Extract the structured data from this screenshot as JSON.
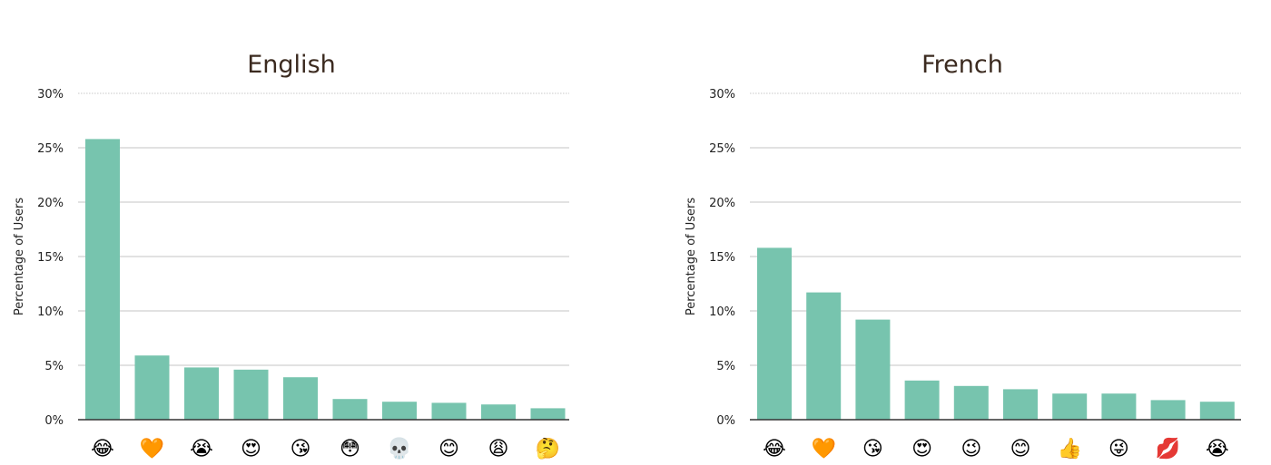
{
  "chart_data": [
    {
      "type": "bar",
      "title": "English",
      "ylabel": "Percentage of Users",
      "ylim": [
        0,
        30
      ],
      "yticks": [
        "0%",
        "5%",
        "10%",
        "15%",
        "20%",
        "25%",
        "30%"
      ],
      "categories": [
        "😂",
        "🧡",
        "😭",
        "😍",
        "😘",
        "😳",
        "💀",
        "😊",
        "😩",
        "🤔"
      ],
      "values": [
        25.8,
        5.9,
        4.8,
        4.6,
        3.9,
        1.9,
        1.65,
        1.55,
        1.4,
        1.05
      ],
      "bar_color": "#77c4ae",
      "grid": true
    },
    {
      "type": "bar",
      "title": "French",
      "ylabel": "Percentage of Users",
      "ylim": [
        0,
        30
      ],
      "yticks": [
        "0%",
        "5%",
        "10%",
        "15%",
        "20%",
        "25%",
        "30%"
      ],
      "categories": [
        "😂",
        "🧡",
        "😘",
        "😍",
        "😉",
        "😊",
        "👍",
        "😜",
        "💋",
        "😭"
      ],
      "values": [
        15.8,
        11.7,
        9.2,
        3.6,
        3.1,
        2.8,
        2.4,
        2.4,
        1.8,
        1.65
      ],
      "bar_color": "#77c4ae",
      "grid": true
    }
  ]
}
